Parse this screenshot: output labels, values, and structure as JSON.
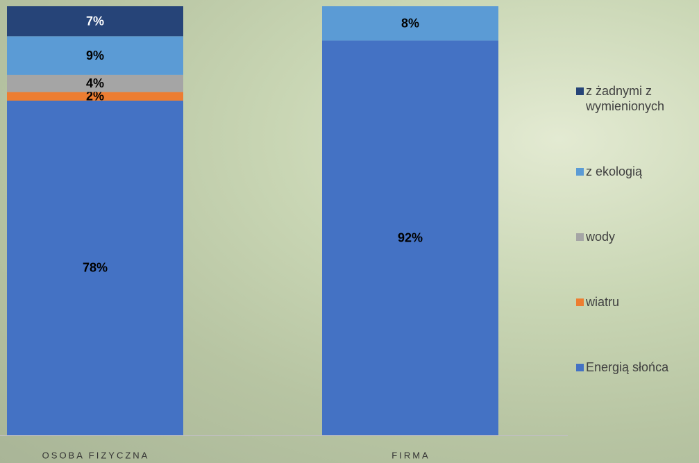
{
  "chart_data": {
    "type": "stacked_bar",
    "categories": [
      "OSOBA FIZYCZNA",
      "FIRMA"
    ],
    "ylim": [
      0,
      100
    ],
    "series": [
      {
        "name": "Energią słońca",
        "color": "#4472c4",
        "values": [
          78,
          92
        ],
        "value_labels": [
          "78%",
          "92%"
        ]
      },
      {
        "name": "wiatru",
        "color": "#ed7d31",
        "values": [
          2,
          0
        ],
        "value_labels": [
          "2%",
          null
        ]
      },
      {
        "name": "wody",
        "color": "#a5a5a5",
        "values": [
          4,
          0
        ],
        "value_labels": [
          "4%",
          null
        ]
      },
      {
        "name": "z ekologią",
        "color": "#5b9bd5",
        "values": [
          9,
          8
        ],
        "value_labels": [
          "9%",
          "8%"
        ]
      },
      {
        "name": "z żadnymi z wymienionych",
        "color": "#264478",
        "values": [
          7,
          0
        ],
        "value_labels": [
          "7%",
          null
        ]
      }
    ]
  }
}
